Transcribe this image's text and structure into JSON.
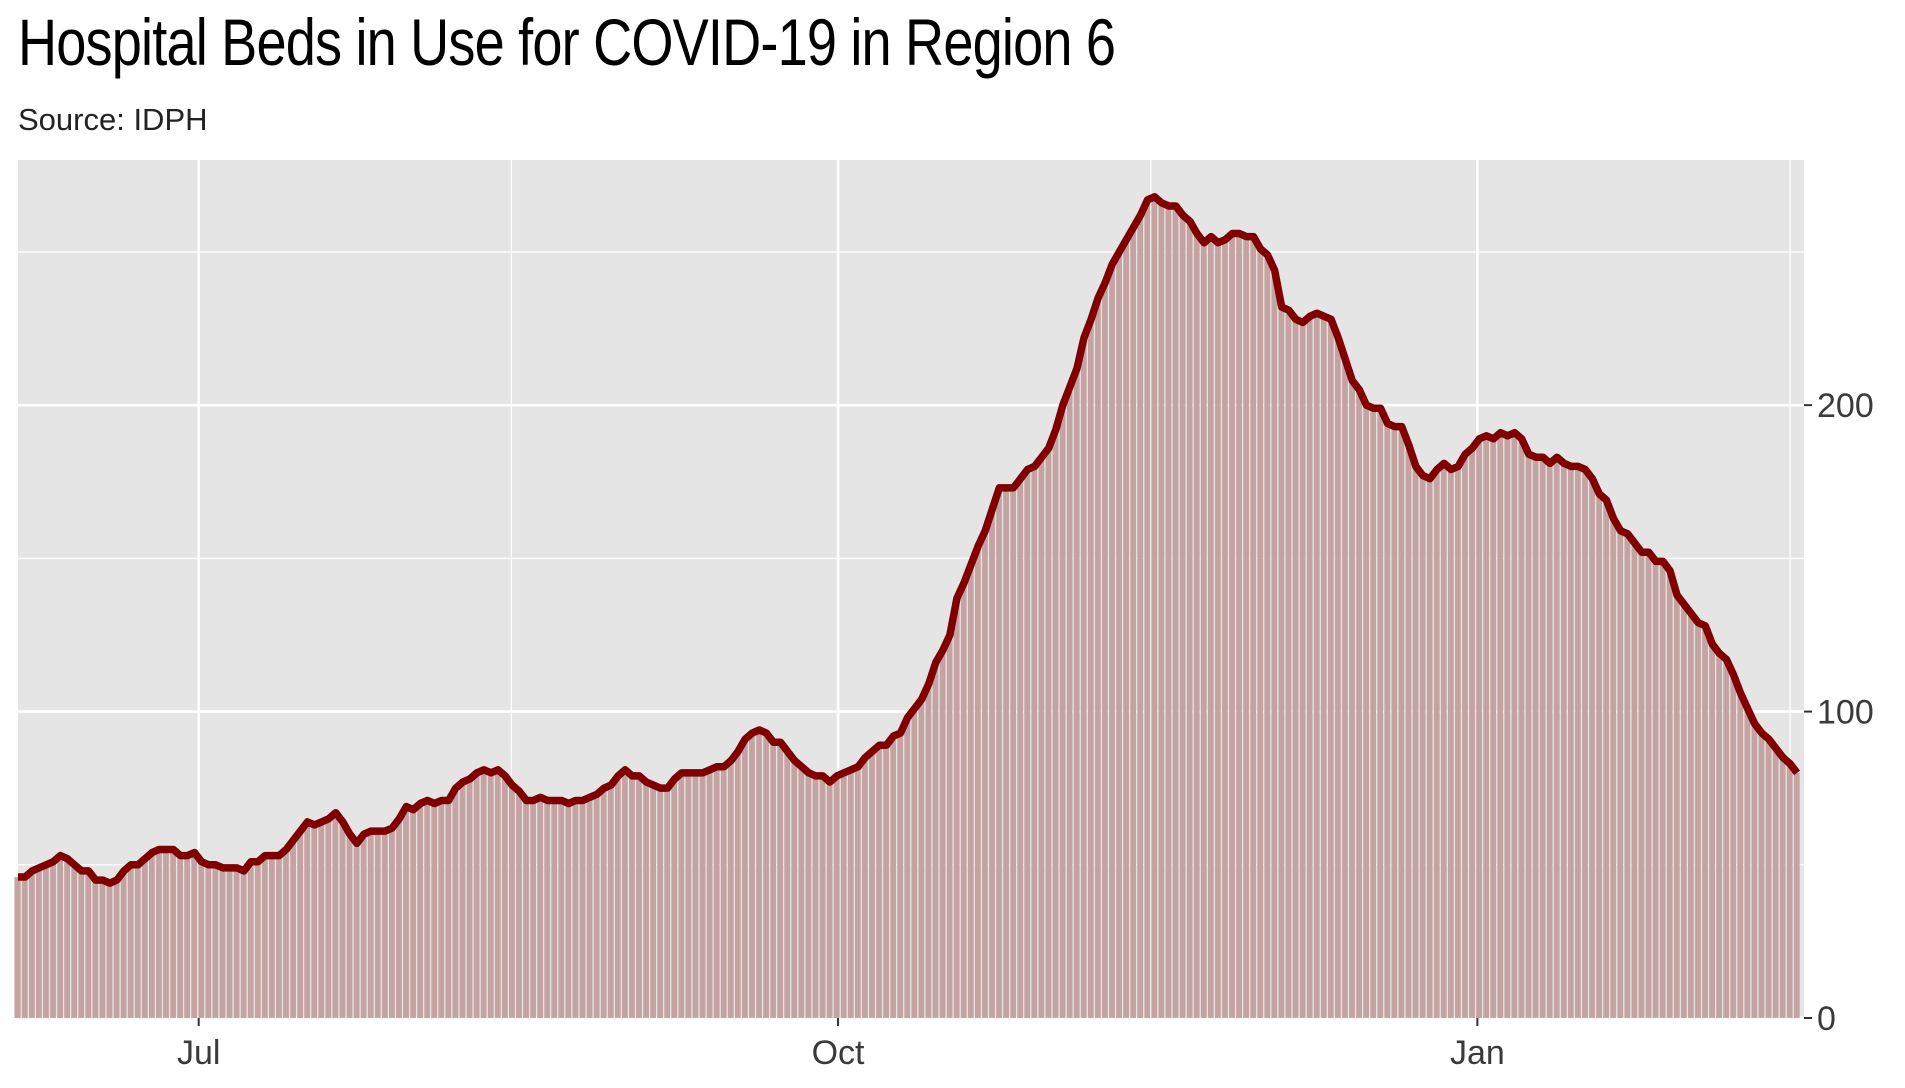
{
  "chart_data": {
    "type": "area",
    "title": "Hospital Beds in Use for COVID-19 in Region 6",
    "subtitle": "Source: IDPH",
    "xlabel": "",
    "ylabel": "",
    "x_start": "2020-06-05",
    "x_end": "2021-02-16",
    "xlim": [
      "2020-06-05",
      "2021-02-17"
    ],
    "ylim": [
      0,
      280
    ],
    "y_axis_position": "right",
    "y_ticks": [
      0,
      100,
      200
    ],
    "y_tick_labels": [
      "0",
      "100",
      "200"
    ],
    "y_minor_gridlines": [
      50,
      150,
      250
    ],
    "x_ticks": [
      "2020-07-01",
      "2020-08-15",
      "2020-10-01",
      "2020-11-15",
      "2021-01-01",
      "2021-02-15"
    ],
    "x_tick_labels": [
      "Jul",
      "",
      "Oct",
      "",
      "Jan",
      ""
    ],
    "grid": true,
    "colors": {
      "panel_background": "#e5e5e5",
      "gridline": "#ffffff",
      "area_fill": "#c4a3a3",
      "line": "#800000",
      "bar_separator": "#f2eaea"
    },
    "series": [
      {
        "values": [
          46,
          46,
          48,
          49,
          50,
          51,
          53,
          52,
          50,
          48,
          48,
          45,
          45,
          44,
          45,
          48,
          50,
          50,
          52,
          54,
          55,
          55,
          55,
          53,
          53,
          54,
          51,
          50,
          50,
          49,
          49,
          49,
          48,
          51,
          51,
          53,
          53,
          53,
          55,
          58,
          61,
          64,
          63,
          64,
          65,
          67,
          64,
          60,
          57,
          60,
          61,
          61,
          61,
          62,
          65,
          69,
          68,
          70,
          71,
          70,
          71,
          71,
          75,
          77,
          78,
          80,
          81,
          80,
          81,
          79,
          76,
          74,
          71,
          71,
          72,
          71,
          71,
          71,
          70,
          71,
          71,
          72,
          73,
          75,
          76,
          79,
          81,
          79,
          79,
          77,
          76,
          75,
          75,
          78,
          80,
          80,
          80,
          80,
          81,
          82,
          82,
          84,
          87,
          91,
          93,
          94,
          93,
          90,
          90,
          87,
          84,
          82,
          80,
          79,
          79,
          77,
          79,
          80,
          81,
          82,
          85,
          87,
          89,
          89,
          92,
          93,
          98,
          101,
          104,
          109,
          116,
          120,
          125,
          137,
          142,
          148,
          154,
          159,
          166,
          173,
          173,
          173,
          176,
          179,
          180,
          183,
          186,
          192,
          200,
          206,
          212,
          222,
          228,
          235,
          240,
          246,
          250,
          254,
          258,
          262,
          267,
          268,
          266,
          265,
          265,
          262,
          260,
          256,
          253,
          255,
          253,
          254,
          256,
          256,
          255,
          255,
          251,
          249,
          244,
          232,
          231,
          228,
          227,
          229,
          230,
          229,
          228,
          222,
          215,
          208,
          205,
          200,
          199,
          199,
          194,
          193,
          193,
          187,
          180,
          177,
          176,
          179,
          181,
          179,
          180,
          184,
          186,
          189,
          190,
          189,
          191,
          190,
          191,
          189,
          184,
          183,
          183,
          181,
          183,
          181,
          180,
          180,
          179,
          176,
          171,
          169,
          163,
          159,
          158,
          155,
          152,
          152,
          149,
          149,
          146,
          138,
          135,
          132,
          129,
          128,
          122,
          119,
          117,
          112,
          106,
          101,
          96,
          93,
          91,
          88,
          85,
          83,
          80
        ]
      }
    ]
  }
}
